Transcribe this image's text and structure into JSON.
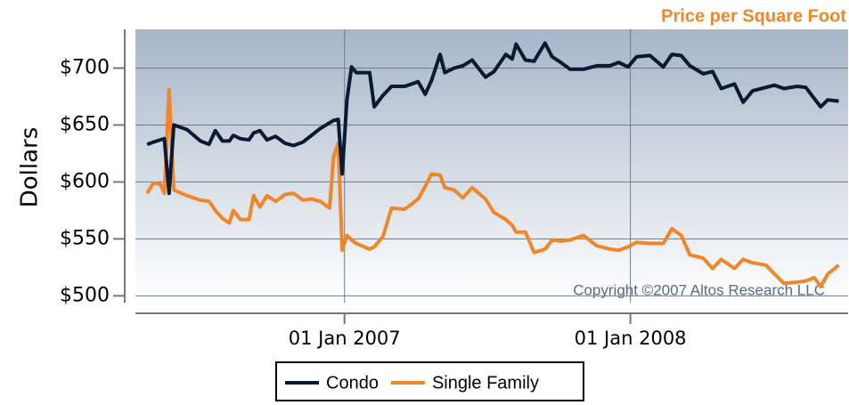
{
  "chart_data": {
    "type": "line",
    "title": "Price per Square Foot",
    "y_label": "Dollars",
    "annotation": "Copyright ©2007 Altos Research LLC",
    "legend": "bottom",
    "grid": true,
    "xlim": [
      "2006-04-09",
      "2008-10-05"
    ],
    "xticks": [
      {
        "value": "2007-01-01",
        "label": "01 Jan 2007"
      },
      {
        "value": "2008-01-01",
        "label": "01 Jan 2008"
      }
    ],
    "ylim": [
      494,
      734
    ],
    "yticks": [
      {
        "value": 500,
        "label": "$500"
      },
      {
        "value": 550,
        "label": "$550"
      },
      {
        "value": 600,
        "label": "$600"
      },
      {
        "value": 650,
        "label": "$650"
      },
      {
        "value": 700,
        "label": "$700"
      }
    ],
    "x": [
      "2006-04-24",
      "2006-05-02",
      "2006-05-11",
      "2006-05-16",
      "2006-05-22",
      "2006-05-28",
      "2006-06-14",
      "2006-07-01",
      "2006-07-12",
      "2006-07-20",
      "2006-07-29",
      "2006-08-07",
      "2006-08-12",
      "2006-08-21",
      "2006-09-01",
      "2006-09-07",
      "2006-09-15",
      "2006-09-24",
      "2006-10-05",
      "2006-10-17",
      "2006-10-28",
      "2006-11-09",
      "2006-11-20",
      "2006-12-01",
      "2006-12-13",
      "2006-12-18",
      "2006-12-24",
      "2006-12-29",
      "2007-01-04",
      "2007-01-10",
      "2007-01-16",
      "2007-02-02",
      "2007-02-08",
      "2007-02-19",
      "2007-03-02",
      "2007-03-19",
      "2007-04-05",
      "2007-04-14",
      "2007-04-22",
      "2007-05-03",
      "2007-05-09",
      "2007-05-21",
      "2007-06-01",
      "2007-06-13",
      "2007-06-30",
      "2007-07-11",
      "2007-07-26",
      "2007-08-03",
      "2007-08-08",
      "2007-08-20",
      "2007-08-31",
      "2007-09-14",
      "2007-09-23",
      "2007-10-04",
      "2007-10-16",
      "2007-11-02",
      "2007-11-19",
      "2007-12-06",
      "2007-12-17",
      "2007-12-29",
      "2008-01-09",
      "2008-01-26",
      "2008-02-12",
      "2008-02-23",
      "2008-03-06",
      "2008-03-17",
      "2008-04-03",
      "2008-04-15",
      "2008-04-26",
      "2008-05-13",
      "2008-05-24",
      "2008-06-05",
      "2008-06-22",
      "2008-07-03",
      "2008-07-15",
      "2008-08-01",
      "2008-08-12",
      "2008-08-23",
      "2008-08-31",
      "2008-09-09",
      "2008-09-23"
    ],
    "series": [
      {
        "name": "Condo",
        "color": "#0b1a33",
        "values": [
          633,
          635,
          637,
          638,
          590,
          650,
          646,
          636,
          633,
          645,
          636,
          636,
          641,
          638,
          637,
          643,
          645,
          637,
          640,
          634,
          632,
          635,
          641,
          647,
          652,
          654,
          655,
          607,
          672,
          701,
          696,
          696,
          666,
          676,
          684,
          684,
          688,
          677,
          689,
          712,
          696,
          700,
          702,
          707,
          692,
          697,
          712,
          708,
          721,
          707,
          706,
          722,
          710,
          705,
          699,
          699,
          702,
          702,
          705,
          701,
          710,
          711,
          701,
          712,
          711,
          702,
          695,
          697,
          682,
          686,
          670,
          680,
          683,
          685,
          682,
          684,
          683,
          673,
          666,
          672,
          671
        ]
      },
      {
        "name": "Single Family",
        "color": "#f0862a",
        "values": [
          590,
          599,
          598,
          590,
          681,
          593,
          588,
          584,
          583,
          575,
          568,
          564,
          575,
          567,
          567,
          588,
          578,
          588,
          583,
          589,
          590,
          584,
          585,
          583,
          577,
          622,
          634,
          540,
          553,
          549,
          546,
          541,
          543,
          552,
          577,
          576,
          585,
          596,
          607,
          606,
          595,
          593,
          586,
          595,
          585,
          573,
          567,
          562,
          556,
          556,
          538,
          541,
          549,
          548,
          549,
          553,
          544,
          541,
          540,
          543,
          547,
          546,
          546,
          559,
          553,
          536,
          533,
          524,
          532,
          524,
          532,
          529,
          527,
          519,
          511,
          512,
          513,
          516,
          508,
          519,
          527
        ]
      }
    ]
  }
}
